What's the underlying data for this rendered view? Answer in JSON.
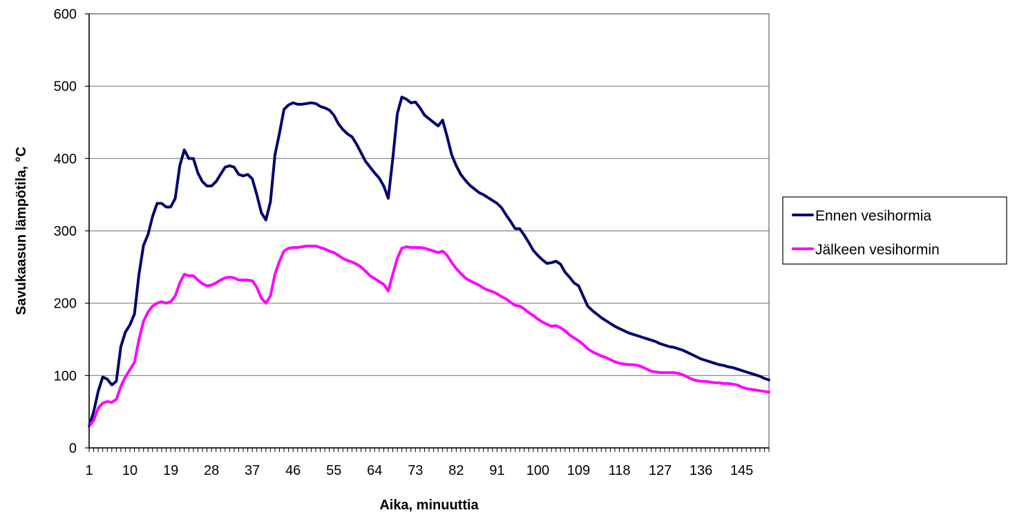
{
  "chart_data": {
    "type": "line",
    "title": "",
    "xlabel": "Aika, minuuttia",
    "ylabel": "Savukaasun lämpötila, °C",
    "ylim": [
      0,
      600
    ],
    "yticks": [
      0,
      100,
      200,
      300,
      400,
      500,
      600
    ],
    "xlim": [
      1,
      151
    ],
    "xtick_labels": [
      "1",
      "10",
      "19",
      "28",
      "37",
      "46",
      "55",
      "64",
      "73",
      "82",
      "91",
      "100",
      "109",
      "118",
      "127",
      "136",
      "145"
    ],
    "grid": "horizontal",
    "legend_position": "right",
    "x": [
      1,
      2,
      3,
      4,
      5,
      6,
      7,
      8,
      9,
      10,
      11,
      12,
      13,
      14,
      15,
      16,
      17,
      18,
      19,
      20,
      21,
      22,
      23,
      24,
      25,
      26,
      27,
      28,
      29,
      30,
      31,
      32,
      33,
      34,
      35,
      36,
      37,
      38,
      39,
      40,
      41,
      42,
      43,
      44,
      45,
      46,
      47,
      48,
      49,
      50,
      51,
      52,
      53,
      54,
      55,
      56,
      57,
      58,
      59,
      60,
      61,
      62,
      63,
      64,
      65,
      66,
      67,
      68,
      69,
      70,
      71,
      72,
      73,
      74,
      75,
      76,
      77,
      78,
      79,
      80,
      81,
      82,
      83,
      84,
      85,
      86,
      87,
      88,
      89,
      90,
      91,
      92,
      93,
      94,
      95,
      96,
      97,
      98,
      99,
      100,
      101,
      102,
      103,
      104,
      105,
      106,
      107,
      108,
      109,
      110,
      111,
      112,
      113,
      114,
      115,
      116,
      117,
      118,
      119,
      120,
      121,
      122,
      123,
      124,
      125,
      126,
      127,
      128,
      129,
      130,
      131,
      132,
      133,
      134,
      135,
      136,
      137,
      138,
      139,
      140,
      141,
      142,
      143,
      144,
      145,
      146,
      147,
      148,
      149,
      150,
      151
    ],
    "series": [
      {
        "name": "Ennen vesihormia",
        "color": "#00006e",
        "values": [
          30,
          50,
          78,
          98,
          95,
          87,
          92,
          140,
          160,
          170,
          185,
          240,
          280,
          295,
          320,
          338,
          338,
          333,
          333,
          345,
          390,
          412,
          400,
          400,
          380,
          368,
          362,
          362,
          368,
          378,
          388,
          390,
          388,
          378,
          376,
          378,
          372,
          350,
          325,
          315,
          340,
          405,
          435,
          468,
          474,
          477,
          475,
          475,
          476,
          477,
          476,
          472,
          470,
          467,
          460,
          448,
          440,
          434,
          430,
          420,
          408,
          396,
          388,
          380,
          373,
          362,
          345,
          400,
          462,
          485,
          482,
          477,
          478,
          470,
          460,
          455,
          450,
          445,
          453,
          430,
          405,
          390,
          378,
          370,
          363,
          358,
          353,
          350,
          346,
          342,
          338,
          332,
          322,
          313,
          303,
          303,
          294,
          284,
          273,
          266,
          260,
          255,
          256,
          258,
          254,
          243,
          236,
          228,
          224,
          210,
          196,
          190,
          185,
          180,
          176,
          172,
          168,
          165,
          162,
          159,
          157,
          155,
          153,
          151,
          149,
          147,
          144,
          142,
          140,
          139,
          137,
          135,
          132,
          129,
          126,
          123,
          121,
          119,
          117,
          115,
          114,
          112,
          111,
          109,
          107,
          105,
          103,
          101,
          99,
          96,
          94
        ]
      },
      {
        "name": "Jälkeen vesihormin",
        "color": "#ff00ff",
        "values": [
          30,
          38,
          55,
          62,
          64,
          63,
          67,
          85,
          98,
          108,
          118,
          150,
          175,
          188,
          196,
          200,
          202,
          200,
          202,
          210,
          228,
          240,
          238,
          238,
          232,
          227,
          224,
          225,
          228,
          232,
          235,
          236,
          235,
          232,
          232,
          232,
          231,
          222,
          207,
          200,
          210,
          240,
          258,
          272,
          276,
          277,
          277,
          278,
          279,
          279,
          279,
          277,
          275,
          272,
          270,
          266,
          262,
          259,
          257,
          254,
          250,
          244,
          238,
          234,
          230,
          226,
          217,
          240,
          262,
          276,
          278,
          277,
          277,
          277,
          276,
          274,
          272,
          270,
          272,
          266,
          256,
          248,
          241,
          235,
          231,
          228,
          225,
          221,
          218,
          216,
          213,
          209,
          206,
          201,
          197,
          196,
          192,
          187,
          183,
          178,
          174,
          171,
          168,
          169,
          166,
          162,
          156,
          152,
          148,
          143,
          137,
          133,
          130,
          127,
          125,
          122,
          119,
          117,
          116,
          115,
          115,
          114,
          112,
          109,
          106,
          105,
          104,
          104,
          104,
          104,
          103,
          101,
          98,
          95,
          93,
          92,
          92,
          91,
          90,
          90,
          89,
          89,
          88,
          87,
          84,
          82,
          81,
          80,
          79,
          78,
          77
        ]
      }
    ]
  }
}
